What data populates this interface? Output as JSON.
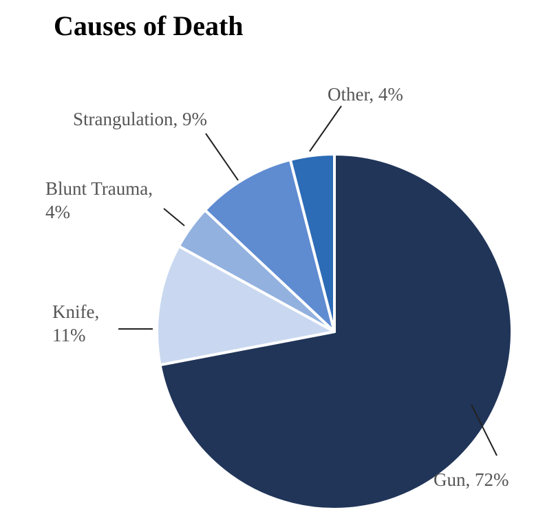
{
  "chart_data": {
    "type": "pie",
    "title": "Causes of Death",
    "slices": [
      {
        "name": "Gun",
        "value": 72,
        "label": "Gun, 72%",
        "color": "#213559"
      },
      {
        "name": "Knife",
        "value": 11,
        "label_lines": [
          "Knife,",
          "11%"
        ],
        "color": "#c9d8f0"
      },
      {
        "name": "Blunt Trauma",
        "value": 4,
        "label_lines": [
          "Blunt Trauma,",
          "4%"
        ],
        "color": "#92b1df"
      },
      {
        "name": "Strangulation",
        "value": 9,
        "label": "Strangulation, 9%",
        "color": "#5f8bd1"
      },
      {
        "name": "Other",
        "value": 4,
        "label": "Other, 4%",
        "color": "#2c6bb6"
      }
    ],
    "start": "12 o'clock",
    "direction": "clockwise"
  }
}
